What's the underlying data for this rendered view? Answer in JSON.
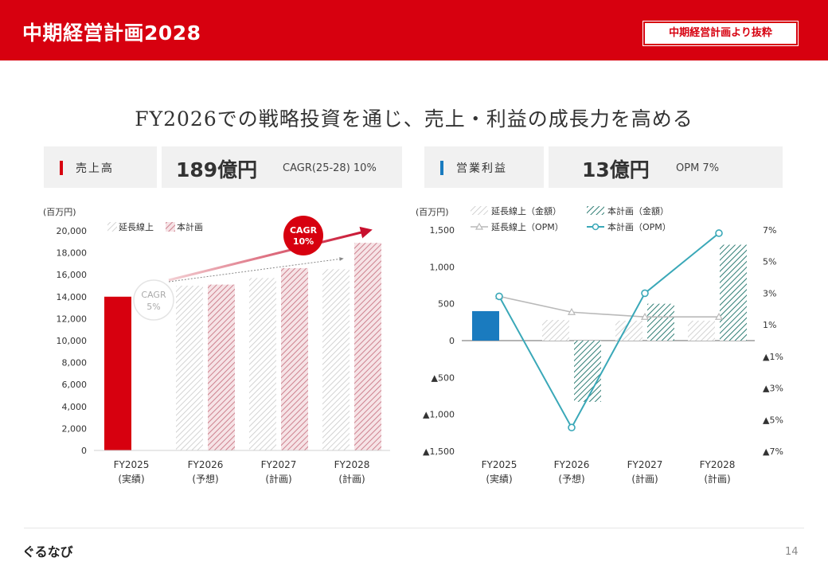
{
  "header": {
    "title": "中期経営計画2028",
    "badge": "中期経営計画より抜粋"
  },
  "headline": "FY2026での戦略投資を通じ、売上・利益の成長力を高める",
  "kpis": [
    {
      "label": "売上高",
      "value": "189億円",
      "sub": "CAGR(25-28) 10%",
      "accent": "#d7000f"
    },
    {
      "label": "営業利益",
      "value": "13億円",
      "sub": "OPM 7%",
      "accent": "#1a7bbf"
    }
  ],
  "colors": {
    "red": "#d7000f",
    "pink_hatch": "#c97785",
    "gray_hatch": "#c8c8c8",
    "teal_hatch": "#2e7d74",
    "blue": "#1a7bbf",
    "cyan_line": "#3aa8b8",
    "gray_line": "#b9b9b9"
  },
  "chart_data": [
    {
      "type": "bar",
      "unit_label": "(百万円)",
      "categories": [
        "FY2025",
        "FY2026",
        "FY2027",
        "FY2028"
      ],
      "category_sub": [
        "(実績)",
        "(予想)",
        "(計画)",
        "(計画)"
      ],
      "ylim": [
        0,
        20000
      ],
      "yticks": [
        0,
        2000,
        4000,
        6000,
        8000,
        10000,
        12000,
        14000,
        16000,
        18000,
        20000
      ],
      "ytick_labels": [
        "0",
        "2,000",
        "4,000",
        "6,000",
        "8,000",
        "10,000",
        "12,000",
        "14,000",
        "16,000",
        "18,000",
        "20,000"
      ],
      "actual": {
        "value": 14000
      },
      "series": [
        {
          "name": "延長線上",
          "values": [
            null,
            15000,
            15700,
            16500
          ]
        },
        {
          "name": "本計画",
          "values": [
            null,
            15100,
            16600,
            18900
          ]
        }
      ],
      "annotations": {
        "cagr_plan": {
          "line1": "CAGR",
          "line2": "10%"
        },
        "cagr_base": {
          "line1": "CAGR",
          "line2": "5%"
        }
      }
    },
    {
      "type": "bar+line",
      "unit_label": "(百万円)",
      "categories": [
        "FY2025",
        "FY2026",
        "FY2027",
        "FY2028"
      ],
      "category_sub": [
        "(実績)",
        "(予想)",
        "(計画)",
        "(計画)"
      ],
      "ylim": [
        -1500,
        1500
      ],
      "yticks": [
        1500,
        1000,
        500,
        0,
        -500,
        -1000,
        -1500
      ],
      "ytick_labels": [
        "1,500",
        "1,000",
        "500",
        "0",
        "▲500",
        "▲1,000",
        "▲1,500"
      ],
      "y2lim": [
        -7,
        7
      ],
      "y2ticks": [
        7,
        5,
        3,
        1,
        -1,
        -3,
        -5,
        -7
      ],
      "y2tick_labels": [
        "7%",
        "5%",
        "3%",
        "1%",
        "▲1%",
        "▲3%",
        "▲5%",
        "▲7%"
      ],
      "actual": {
        "value": 400
      },
      "bar_series": [
        {
          "name": "延長線上（金額）",
          "values": [
            null,
            280,
            270,
            270
          ]
        },
        {
          "name": "本計画（金額）",
          "values": [
            null,
            -830,
            500,
            1300
          ]
        }
      ],
      "line_series": [
        {
          "name": "延長線上（OPM）",
          "values": [
            2.8,
            1.8,
            1.5,
            1.5
          ]
        },
        {
          "name": "本計画（OPM）",
          "values": [
            2.8,
            -5.5,
            3.0,
            6.8
          ]
        }
      ]
    }
  ],
  "footer": {
    "logo": "ぐるなび",
    "page": "14"
  }
}
